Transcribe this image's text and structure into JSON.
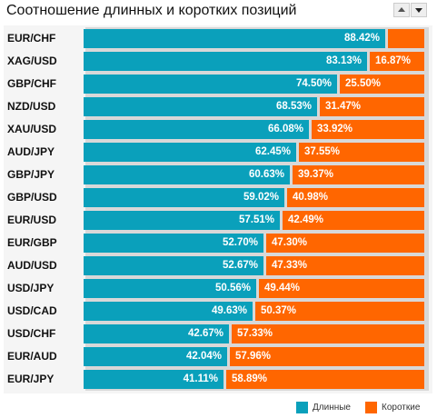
{
  "title": "Соотношение длинных и коротких позиций",
  "colors": {
    "long": "#0aa0bb",
    "short": "#ff6600"
  },
  "controls": {
    "up_icon": "triangle-up-icon",
    "down_icon": "triangle-down-icon"
  },
  "chart_data": {
    "type": "bar",
    "orientation": "horizontal",
    "stacked": true,
    "categories": [
      "EUR/CHF",
      "XAG/USD",
      "GBP/CHF",
      "NZD/USD",
      "XAU/USD",
      "AUD/JPY",
      "GBP/JPY",
      "GBP/USD",
      "EUR/USD",
      "EUR/GBP",
      "AUD/USD",
      "USD/JPY",
      "USD/CAD",
      "USD/CHF",
      "EUR/AUD",
      "EUR/JPY"
    ],
    "series": [
      {
        "name": "Длинные",
        "values": [
          88.42,
          83.13,
          74.5,
          68.53,
          66.08,
          62.45,
          60.63,
          59.02,
          57.51,
          52.7,
          52.67,
          50.56,
          49.63,
          42.67,
          42.04,
          41.11
        ],
        "labels": [
          "88.42%",
          "83.13%",
          "74.50%",
          "68.53%",
          "66.08%",
          "62.45%",
          "60.63%",
          "59.02%",
          "57.51%",
          "52.70%",
          "52.67%",
          "50.56%",
          "49.63%",
          "42.67%",
          "42.04%",
          "41.11%"
        ]
      },
      {
        "name": "Короткие",
        "values": [
          11.58,
          16.87,
          25.5,
          31.47,
          33.92,
          37.55,
          39.37,
          40.98,
          42.49,
          47.3,
          47.33,
          49.44,
          50.37,
          57.33,
          57.96,
          58.89
        ],
        "labels": [
          "",
          "16.87%",
          "25.50%",
          "31.47%",
          "33.92%",
          "37.55%",
          "39.37%",
          "40.98%",
          "42.49%",
          "47.30%",
          "47.33%",
          "49.44%",
          "50.37%",
          "57.33%",
          "57.96%",
          "58.89%"
        ]
      }
    ],
    "xlim": [
      0,
      100
    ],
    "legend_position": "bottom-right"
  }
}
